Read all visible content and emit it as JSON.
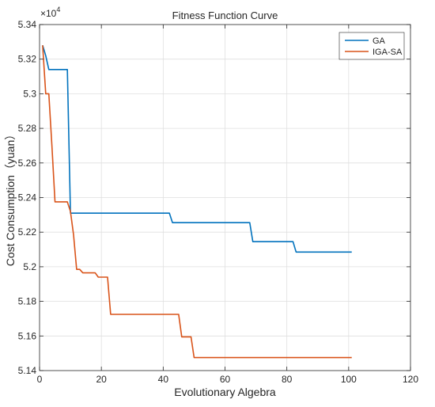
{
  "chart_data": {
    "type": "line",
    "title": "Fitness Function Curve",
    "xlabel": "Evolutionary Algebra",
    "ylabel": "Cost Consumption（yuan）",
    "y_multiplier": {
      "base": "×10",
      "exponent": "4"
    },
    "xlim": [
      0,
      120
    ],
    "ylim": [
      5.14,
      5.34
    ],
    "x_ticks": [
      0,
      20,
      40,
      60,
      80,
      100,
      120
    ],
    "y_ticks": [
      5.14,
      5.16,
      5.18,
      5.2,
      5.22,
      5.24,
      5.26,
      5.28,
      5.3,
      5.32,
      5.34
    ],
    "x_tick_labels": [
      "0",
      "20",
      "40",
      "60",
      "80",
      "100",
      "120"
    ],
    "y_tick_labels": [
      "5.14",
      "5.16",
      "5.18",
      "5.2",
      "5.22",
      "5.24",
      "5.26",
      "5.28",
      "5.3",
      "5.32",
      "5.34"
    ],
    "grid": true,
    "legend_position": "top-right",
    "series": [
      {
        "name": "GA",
        "color": "#0072BD",
        "x": [
          1,
          2,
          3,
          9,
          10,
          42,
          43,
          68,
          69,
          82,
          83,
          101
        ],
        "y": [
          5.328,
          5.322,
          5.314,
          5.314,
          5.231,
          5.231,
          5.2255,
          5.2255,
          5.2145,
          5.2145,
          5.2085,
          5.2085
        ]
      },
      {
        "name": "IGA-SA",
        "color": "#D95319",
        "x": [
          1,
          2,
          3,
          4,
          5,
          9,
          10,
          11,
          12,
          13,
          14,
          18,
          19,
          22,
          23,
          45,
          46,
          49,
          50,
          101
        ],
        "y": [
          5.328,
          5.3,
          5.3,
          5.27,
          5.2375,
          5.2375,
          5.232,
          5.2185,
          5.1985,
          5.1985,
          5.1965,
          5.1965,
          5.194,
          5.194,
          5.1725,
          5.1725,
          5.1595,
          5.1595,
          5.1475,
          5.1475
        ]
      }
    ]
  }
}
